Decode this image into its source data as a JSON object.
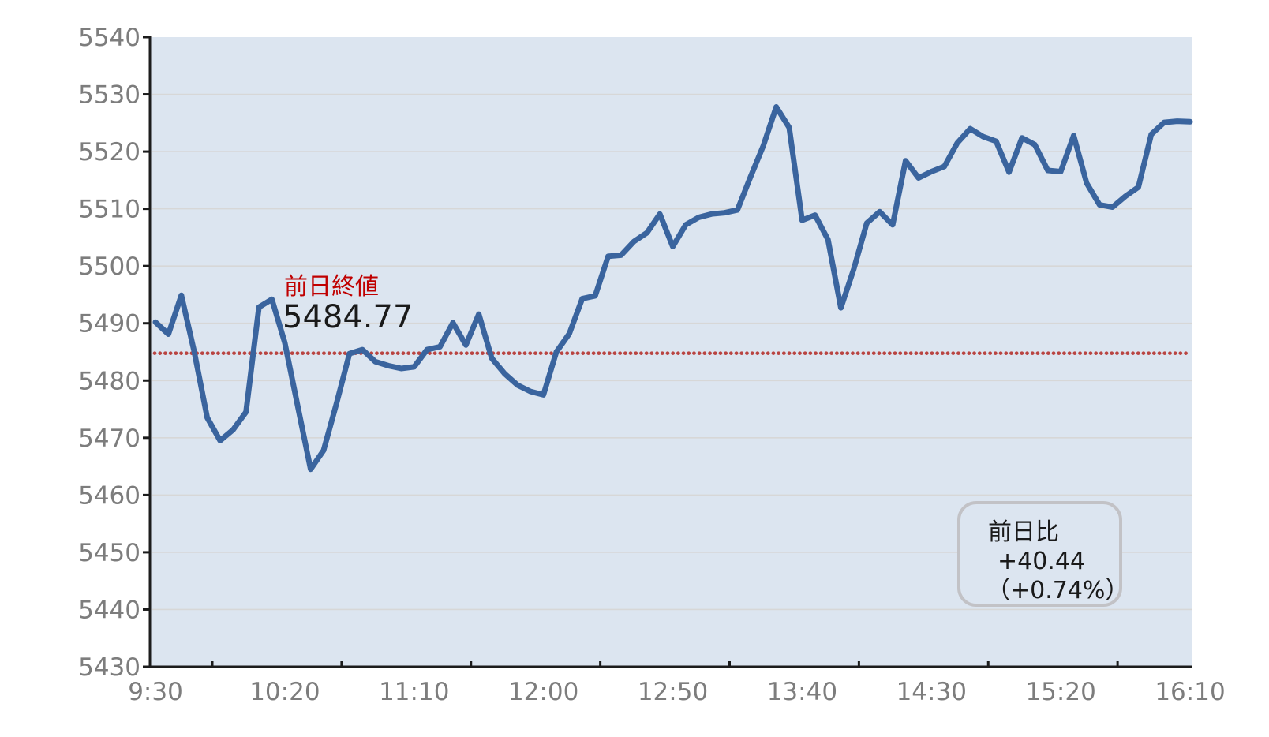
{
  "chart_data": {
    "type": "line",
    "grid": true,
    "legend": false,
    "plot_background": "#dce5f0",
    "ylim": [
      5430,
      5540
    ],
    "y_axis": {
      "min": 5430,
      "max": 5540,
      "tick_step": 10,
      "ticks": [
        5430,
        5440,
        5450,
        5460,
        5470,
        5480,
        5490,
        5500,
        5510,
        5520,
        5530,
        5540
      ]
    },
    "x_axis": {
      "labels": [
        "9:30",
        "10:20",
        "11:10",
        "12:00",
        "12:50",
        "13:40",
        "14:30",
        "15:20",
        "16:10"
      ],
      "start_time": "9:30",
      "end_time": "16:10",
      "interval_minutes": 5
    },
    "series": [
      {
        "name": "price",
        "times": [
          "9:30",
          "9:35",
          "9:40",
          "9:45",
          "9:50",
          "9:55",
          "10:00",
          "10:05",
          "10:10",
          "10:15",
          "10:20",
          "10:25",
          "10:30",
          "10:35",
          "10:40",
          "10:45",
          "10:50",
          "10:55",
          "11:00",
          "11:05",
          "11:10",
          "11:15",
          "11:20",
          "11:25",
          "11:30",
          "11:35",
          "11:40",
          "11:45",
          "11:50",
          "11:55",
          "12:00",
          "12:05",
          "12:10",
          "12:15",
          "12:20",
          "12:25",
          "12:30",
          "12:35",
          "12:40",
          "12:45",
          "12:50",
          "12:55",
          "13:00",
          "13:05",
          "13:10",
          "13:15",
          "13:20",
          "13:25",
          "13:30",
          "13:35",
          "13:40",
          "13:45",
          "13:50",
          "13:55",
          "14:00",
          "14:05",
          "14:10",
          "14:15",
          "14:20",
          "14:25",
          "14:30",
          "14:35",
          "14:40",
          "14:45",
          "14:50",
          "14:55",
          "15:00",
          "15:05",
          "15:10",
          "15:15",
          "15:20",
          "15:25",
          "15:30",
          "15:35",
          "15:40",
          "15:45",
          "15:50",
          "15:55",
          "16:00",
          "16:05",
          "16:10"
        ],
        "values": [
          5490.2,
          5488.1,
          5494.9,
          5485.0,
          5473.5,
          5469.5,
          5471.4,
          5474.5,
          5492.8,
          5494.2,
          5486.6,
          5475.5,
          5464.5,
          5467.8,
          5476.0,
          5484.7,
          5485.4,
          5483.3,
          5482.6,
          5482.1,
          5482.4,
          5485.4,
          5485.9,
          5490.1,
          5486.2,
          5491.6,
          5483.9,
          5481.2,
          5479.2,
          5478.1,
          5477.5,
          5485.0,
          5488.2,
          5494.3,
          5494.8,
          5501.7,
          5501.9,
          5504.3,
          5505.8,
          5509.1,
          5503.4,
          5507.2,
          5508.5,
          5509.1,
          5509.3,
          5509.8,
          5515.5,
          5521.0,
          5527.8,
          5524.2,
          5508.0,
          5508.9,
          5504.6,
          5492.7,
          5499.5,
          5507.5,
          5509.5,
          5507.2,
          5518.4,
          5515.4,
          5516.5,
          5517.4,
          5521.5,
          5524.0,
          5522.6,
          5521.8,
          5516.4,
          5522.4,
          5521.2,
          5516.7,
          5516.5,
          5522.8,
          5514.5,
          5510.7,
          5510.3,
          5512.2,
          5513.8,
          5523.0,
          5525.1,
          5525.3,
          5525.21
        ]
      }
    ],
    "prev_close": {
      "label": "前日終値",
      "value": 5484.77,
      "value_text": "5484.77"
    },
    "change_box": {
      "title": "前日比",
      "change_text": "+40.44",
      "change_percent_text": "（+0.74%）"
    }
  },
  "colors": {
    "price_line": "#3a649e",
    "prev_close_dots": "#b94441",
    "plot_background": "#dce5f0",
    "gridline": "#d7d7d7",
    "axis": "#1c1c1c",
    "tick_label": "#7d7d7d",
    "prev_close_label": "#c00000",
    "annotation_text": "#1a1a1a",
    "box_border": "#c2c2c6"
  }
}
